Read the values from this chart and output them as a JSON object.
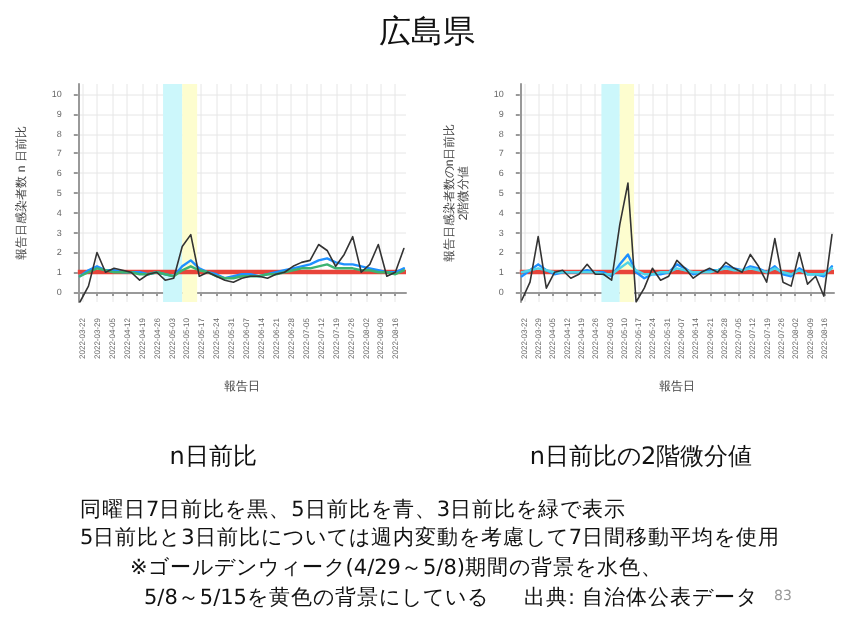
{
  "chart_data": [
    {
      "type": "line",
      "title": "n日前比",
      "xlabel": "報告日",
      "ylabel": "報告日感染者数 n 日前比",
      "annotations": [
        "広島県",
        "同曜日7日前比を黒、5日前比を青、3日前比を緑で表示",
        "5日前比と3日前比については週内変動を考慮して7日間移動平均を使用",
        "※ゴールデンウィーク(4/29～5/8)期間の背景を水色、",
        "5/8～5/15を黄色の背景にしている",
        "出典: 自治体公表データ",
        "83"
      ],
      "x": [
        "2022-03-21",
        "2022-03-25",
        "2022-03-29",
        "2022-04-02",
        "2022-04-06",
        "2022-04-10",
        "2022-04-14",
        "2022-04-18",
        "2022-04-22",
        "2022-04-26",
        "2022-04-30",
        "2022-05-04",
        "2022-05-08",
        "2022-05-12",
        "2022-05-16",
        "2022-05-20",
        "2022-05-24",
        "2022-05-28",
        "2022-06-01",
        "2022-06-05",
        "2022-06-09",
        "2022-06-13",
        "2022-06-17",
        "2022-06-21",
        "2022-06-25",
        "2022-06-29",
        "2022-07-03",
        "2022-07-07",
        "2022-07-11",
        "2022-07-15",
        "2022-07-19",
        "2022-07-23",
        "2022-07-27",
        "2022-07-31",
        "2022-08-04",
        "2022-08-08",
        "2022-08-12",
        "2022-08-16",
        "2022-08-20"
      ],
      "series": [
        {
          "color": "#333333",
          "values": [
            -0.5,
            0.3,
            2.0,
            1.0,
            1.2,
            1.1,
            1.0,
            0.6,
            0.9,
            1.0,
            0.6,
            0.7,
            2.3,
            2.9,
            0.8,
            1.0,
            0.8,
            0.6,
            0.5,
            0.7,
            0.8,
            0.8,
            0.7,
            0.9,
            1.0,
            1.3,
            1.5,
            1.6,
            2.4,
            2.1,
            1.3,
            1.9,
            2.8,
            1.0,
            1.4,
            2.4,
            0.8,
            1.0,
            2.2
          ]
        },
        {
          "color": "#1e90ff",
          "values": [
            0.8,
            1.1,
            1.3,
            1.1,
            1.1,
            1.0,
            1.0,
            1.0,
            0.9,
            1.0,
            0.9,
            0.8,
            1.3,
            1.6,
            1.2,
            1.0,
            0.9,
            0.7,
            0.8,
            0.9,
            0.9,
            0.8,
            0.9,
            1.0,
            1.1,
            1.2,
            1.3,
            1.4,
            1.6,
            1.7,
            1.5,
            1.4,
            1.4,
            1.3,
            1.2,
            1.1,
            1.0,
            1.0,
            1.2
          ]
        },
        {
          "color": "#3cb371",
          "values": [
            0.8,
            1.0,
            1.2,
            1.1,
            1.0,
            1.0,
            1.0,
            0.9,
            0.9,
            1.0,
            0.9,
            0.8,
            1.1,
            1.3,
            1.1,
            1.0,
            0.8,
            0.7,
            0.7,
            0.8,
            0.8,
            0.8,
            0.9,
            0.9,
            1.0,
            1.1,
            1.2,
            1.2,
            1.3,
            1.4,
            1.2,
            1.2,
            1.2,
            1.1,
            1.1,
            1.0,
            1.0,
            0.9,
            1.1
          ]
        }
      ],
      "xlim": [
        "2022-03-20",
        "2022-08-21"
      ],
      "xticks": [
        "2022-03-22",
        "2022-03-29",
        "2022-04-05",
        "2022-04-12",
        "2022-04-19",
        "2022-04-26",
        "2022-05-03",
        "2022-05-10",
        "2022-05-17",
        "2022-05-24",
        "2022-05-31",
        "2022-06-07",
        "2022-06-14",
        "2022-06-21",
        "2022-06-28",
        "2022-07-05",
        "2022-07-12",
        "2022-07-19",
        "2022-07-26",
        "2022-08-02",
        "2022-08-09",
        "2022-08-16"
      ],
      "ylim": [
        -0.5,
        10.5
      ],
      "yticks": [
        0,
        1,
        2,
        3,
        4,
        5,
        6,
        7,
        8,
        9,
        10
      ],
      "ref_lines": [
        {
          "axis": "y",
          "value": 1,
          "color": "#e8443a"
        }
      ],
      "bands": [
        {
          "axis": "x",
          "from": "2022-04-29",
          "to": "2022-05-08",
          "color": "#ccf7fb"
        },
        {
          "axis": "x",
          "from": "2022-05-08",
          "to": "2022-05-15",
          "color": "#fdfdcf"
        }
      ],
      "grid": true,
      "marker": "none",
      "line_style": "solid"
    },
    {
      "type": "line",
      "title": "n日前比の2階微分値",
      "xlabel": "報告日",
      "ylabel": "報告日感染者数のn日前比\n2階微分値",
      "x": [
        "2022-03-21",
        "2022-03-25",
        "2022-03-29",
        "2022-04-02",
        "2022-04-06",
        "2022-04-10",
        "2022-04-14",
        "2022-04-18",
        "2022-04-22",
        "2022-04-26",
        "2022-04-30",
        "2022-05-04",
        "2022-05-08",
        "2022-05-12",
        "2022-05-16",
        "2022-05-20",
        "2022-05-24",
        "2022-05-28",
        "2022-06-01",
        "2022-06-05",
        "2022-06-09",
        "2022-06-13",
        "2022-06-17",
        "2022-06-21",
        "2022-06-25",
        "2022-06-29",
        "2022-07-03",
        "2022-07-07",
        "2022-07-11",
        "2022-07-15",
        "2022-07-19",
        "2022-07-23",
        "2022-07-27",
        "2022-07-31",
        "2022-08-04",
        "2022-08-08",
        "2022-08-12",
        "2022-08-16",
        "2022-08-20"
      ],
      "series": [
        {
          "color": "#333333",
          "values": [
            -0.4,
            0.5,
            2.8,
            0.2,
            1.0,
            1.1,
            0.7,
            0.9,
            1.4,
            0.9,
            0.9,
            0.6,
            3.4,
            5.5,
            -0.5,
            0.2,
            1.2,
            0.6,
            0.8,
            1.6,
            1.2,
            0.7,
            1.0,
            1.2,
            1.0,
            1.5,
            1.2,
            1.0,
            1.9,
            1.3,
            0.5,
            2.7,
            0.5,
            0.3,
            2.0,
            0.4,
            0.8,
            -0.2,
            2.9
          ]
        },
        {
          "color": "#1e90ff",
          "values": [
            0.8,
            1.1,
            1.4,
            1.1,
            0.9,
            1.0,
            1.0,
            1.0,
            1.1,
            1.0,
            1.0,
            0.8,
            1.4,
            1.9,
            1.0,
            0.7,
            0.9,
            0.9,
            1.0,
            1.4,
            1.2,
            0.9,
            1.0,
            1.1,
            1.1,
            1.3,
            1.2,
            1.1,
            1.3,
            1.2,
            1.0,
            1.3,
            0.9,
            0.8,
            1.2,
            0.9,
            0.9,
            0.8,
            1.3
          ]
        },
        {
          "color": "#4fd3e6",
          "values": [
            1.0,
            1.1,
            1.2,
            1.1,
            1.0,
            1.0,
            1.0,
            1.0,
            1.0,
            1.0,
            0.9,
            0.9,
            1.2,
            1.5,
            1.1,
            0.9,
            0.9,
            1.0,
            1.0,
            1.2,
            1.1,
            1.0,
            1.0,
            1.0,
            1.1,
            1.2,
            1.1,
            1.1,
            1.2,
            1.1,
            1.0,
            1.2,
            1.0,
            0.9,
            1.1,
            0.9,
            0.9,
            0.9,
            1.2
          ]
        }
      ],
      "xlim": [
        "2022-03-20",
        "2022-08-21"
      ],
      "xticks": [
        "2022-03-22",
        "2022-03-29",
        "2022-04-05",
        "2022-04-12",
        "2022-04-19",
        "2022-04-26",
        "2022-05-03",
        "2022-05-10",
        "2022-05-17",
        "2022-05-24",
        "2022-05-31",
        "2022-06-07",
        "2022-06-14",
        "2022-06-21",
        "2022-06-28",
        "2022-07-05",
        "2022-07-12",
        "2022-07-19",
        "2022-07-26",
        "2022-08-02",
        "2022-08-09",
        "2022-08-16"
      ],
      "ylim": [
        -0.5,
        10.5
      ],
      "yticks": [
        0,
        1,
        2,
        3,
        4,
        5,
        6,
        7,
        8,
        9,
        10
      ],
      "ref_lines": [
        {
          "axis": "y",
          "value": 1,
          "color": "#e8443a"
        }
      ],
      "bands": [
        {
          "axis": "x",
          "from": "2022-04-29",
          "to": "2022-05-08",
          "color": "#ccf7fb"
        },
        {
          "axis": "x",
          "from": "2022-05-08",
          "to": "2022-05-15",
          "color": "#fdfdcf"
        }
      ],
      "grid": true,
      "marker": "none",
      "line_style": "solid"
    }
  ]
}
